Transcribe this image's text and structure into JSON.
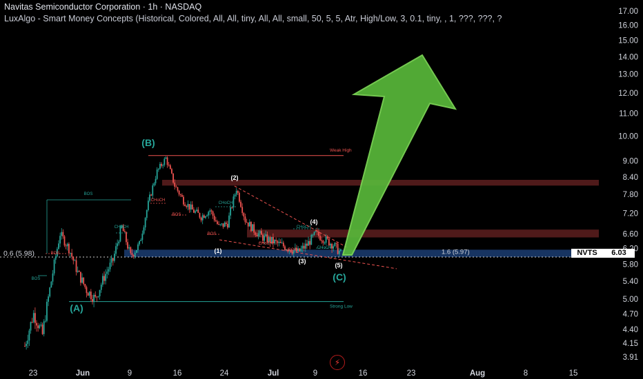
{
  "header": {
    "title": "Navitas Semiconductor Corporation · 1h · NASDAQ",
    "indicator": "LuxAlgo - Smart Money Concepts (Historical, Colored, All, All, tiny, All, All, small, 50, 5, 5, Atr, High/Low, 3, 0.1, tiny, , 1, ???, ???, ?"
  },
  "symbol": "NVTS",
  "last_price": "6.03",
  "fib_left_label": "0.6 (5.98)",
  "fib_right_label": "1.6 (5.97)",
  "colors": {
    "up": "#26a69a",
    "down": "#ef5350",
    "bg": "#000000",
    "arrow_fill": "#58b83a",
    "arrow_stroke": "#7ed957",
    "supply_zone": "#5d1f1f",
    "demand_zone": "#1a3a6b",
    "wave": "#26a69a",
    "bos": "#26a69a",
    "choch": "#ef5350"
  },
  "chart_data": {
    "type": "candlestick",
    "title": "Navitas Semiconductor Corporation · 1h · NASDAQ",
    "y_axis_ticks": [
      "17.00",
      "16.00",
      "15.00",
      "14.00",
      "13.00",
      "12.00",
      "11.00",
      "10.00",
      "9.00",
      "8.40",
      "7.80",
      "7.20",
      "6.60",
      "6.20",
      "5.80",
      "5.40",
      "5.00",
      "4.70",
      "4.40",
      "4.15",
      "3.91"
    ],
    "y_range": [
      3.8,
      17.4
    ],
    "y_scale": "log",
    "x_axis_ticks": [
      "23",
      "Jun",
      "9",
      "16",
      "24",
      "Jul",
      "9",
      "16",
      "23",
      "Aug",
      "8",
      "15"
    ],
    "price_path": [
      {
        "x": "May 20",
        "y": 4.1
      },
      {
        "x": "May 21",
        "y": 4.7
      },
      {
        "x": "May 22",
        "y": 4.3
      },
      {
        "x": "May 23",
        "y": 5.4
      },
      {
        "x": "May 26",
        "y": 6.6
      },
      {
        "x": "May 27",
        "y": 6.2
      },
      {
        "x": "May 28",
        "y": 5.6
      },
      {
        "x": "May 29",
        "y": 5.2
      },
      {
        "x": "May 30",
        "y": 5.0
      },
      {
        "x": "Jun 2",
        "y": 5.5
      },
      {
        "x": "Jun 3",
        "y": 5.9
      },
      {
        "x": "Jun 4",
        "y": 6.8
      },
      {
        "x": "Jun 5",
        "y": 6.0
      },
      {
        "x": "Jun 6",
        "y": 6.3
      },
      {
        "x": "Jun 9",
        "y": 7.5
      },
      {
        "x": "Jun 10",
        "y": 8.6
      },
      {
        "x": "Jun 11",
        "y": 9.1
      },
      {
        "x": "Jun 12",
        "y": 8.1
      },
      {
        "x": "Jun 13",
        "y": 7.6
      },
      {
        "x": "Jun 16",
        "y": 7.3
      },
      {
        "x": "Jun 17",
        "y": 7.1
      },
      {
        "x": "Jun 18",
        "y": 7.3
      },
      {
        "x": "Jun 20",
        "y": 6.8
      },
      {
        "x": "Jun 23",
        "y": 6.9
      },
      {
        "x": "Jun 24",
        "y": 8.0
      },
      {
        "x": "Jun 25",
        "y": 7.0
      },
      {
        "x": "Jun 26",
        "y": 6.7
      },
      {
        "x": "Jun 27",
        "y": 6.5
      },
      {
        "x": "Jun 30",
        "y": 6.4
      },
      {
        "x": "Jul 1",
        "y": 6.3
      },
      {
        "x": "Jul 2",
        "y": 6.2
      },
      {
        "x": "Jul 3",
        "y": 6.1
      },
      {
        "x": "Jul 7",
        "y": 6.3
      },
      {
        "x": "Jul 8",
        "y": 6.6
      },
      {
        "x": "Jul 9",
        "y": 6.45
      },
      {
        "x": "Jul 10",
        "y": 6.3
      },
      {
        "x": "Jul 11",
        "y": 6.03
      }
    ],
    "wave_labels": [
      "(A)",
      "(B)",
      "(C)",
      "(1)",
      "(2)",
      "(3)",
      "(4)",
      "(5)"
    ],
    "structure_labels": [
      "BOS",
      "BOS",
      "CHoCH",
      "CHoCH",
      "CHoCH",
      "BOS",
      "BOS",
      "CHoCH",
      "BOS",
      "CHoCH",
      "CHoCH",
      "BOS"
    ],
    "levels": [
      {
        "label": "Weak High",
        "price": 9.2
      },
      {
        "label": "Strong Low",
        "price": 4.95
      }
    ],
    "zones": [
      {
        "kind": "supply",
        "from": 8.1,
        "to": 8.3
      },
      {
        "kind": "supply",
        "from": 6.5,
        "to": 6.72
      },
      {
        "kind": "demand",
        "from": 5.98,
        "to": 6.17
      }
    ],
    "projection": {
      "from": 6.03,
      "to": 13.9
    }
  }
}
